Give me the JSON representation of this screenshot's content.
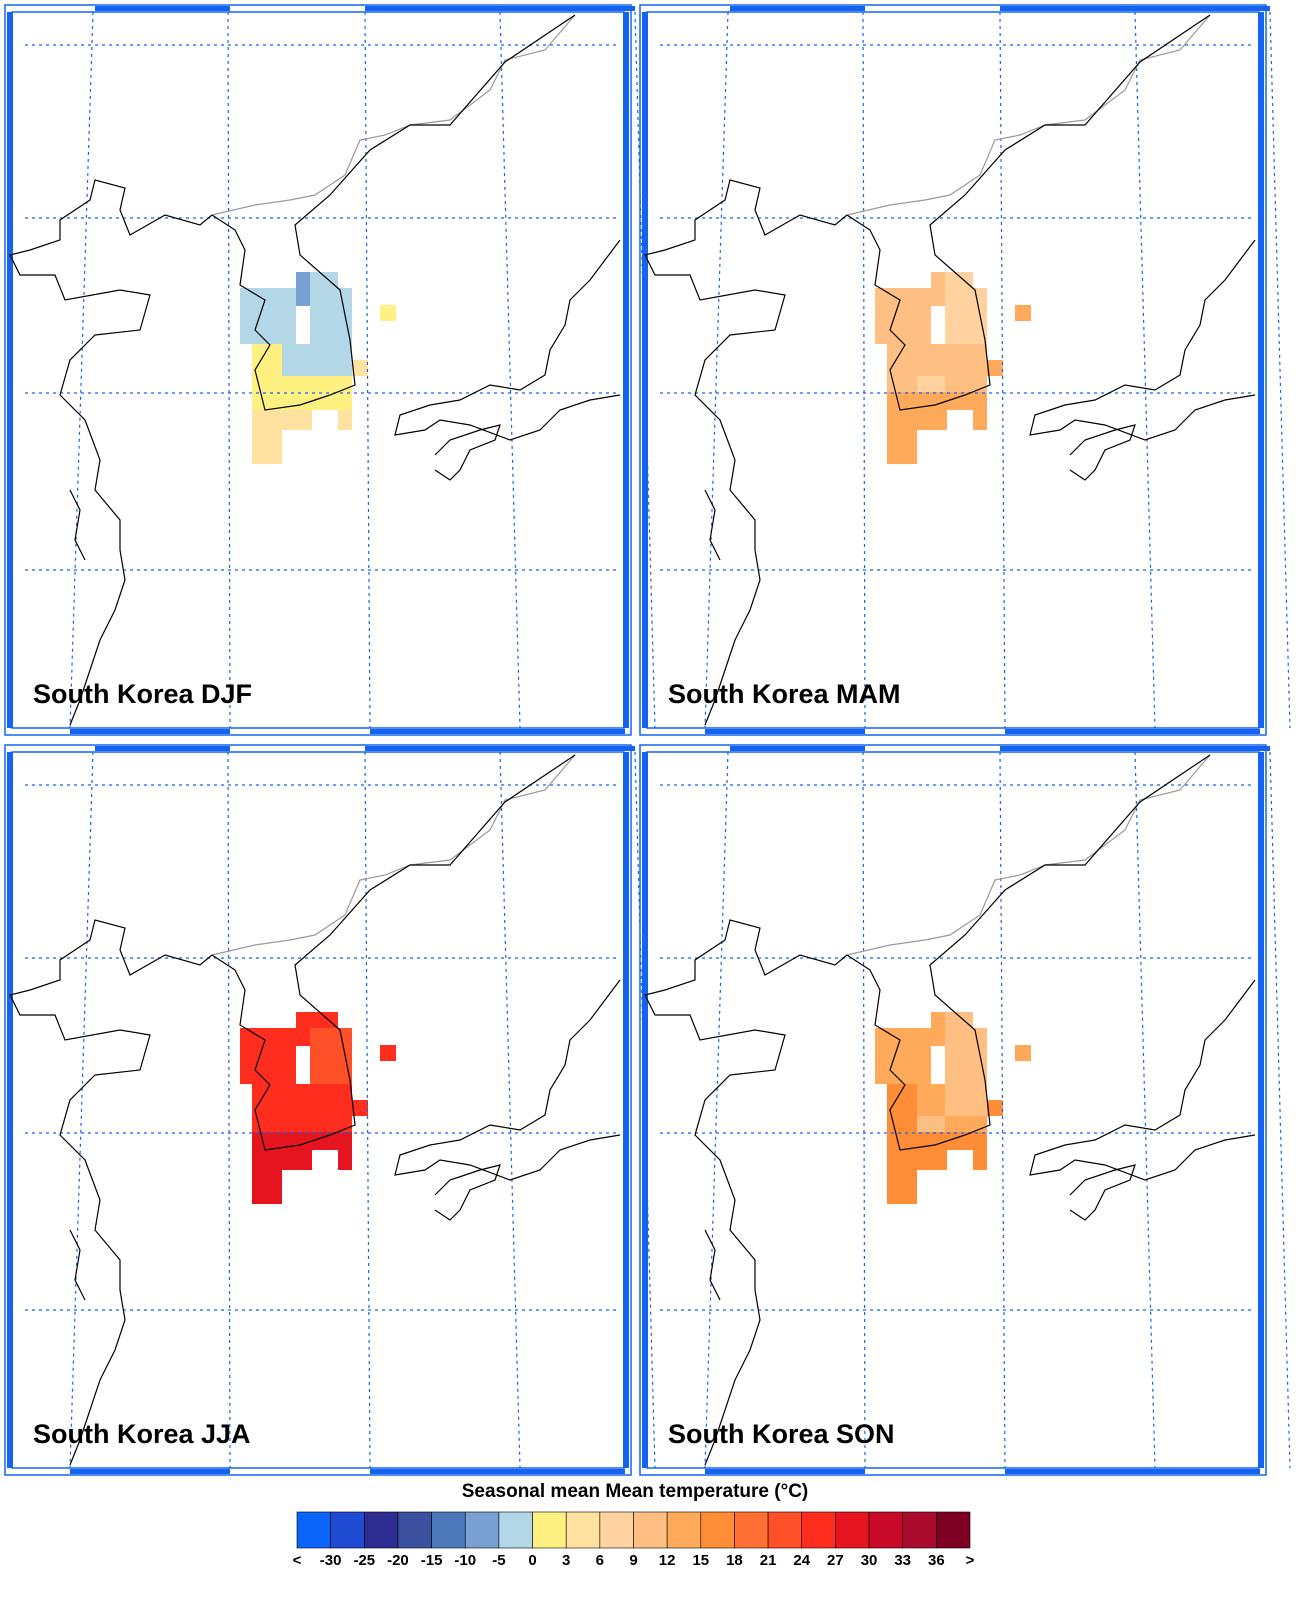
{
  "panels": [
    {
      "title": "South Korea DJF"
    },
    {
      "title": "South Korea MAM"
    },
    {
      "title": "South Korea JJA"
    },
    {
      "title": "South Korea SON"
    }
  ],
  "colorbar": {
    "title": "Seasonal mean Mean temperature (°C)",
    "labels": [
      "<",
      -30,
      -25,
      -20,
      -15,
      -10,
      -5,
      0,
      3,
      6,
      9,
      12,
      15,
      18,
      21,
      24,
      27,
      30,
      33,
      36,
      ">"
    ],
    "colors": [
      "#0a64fa",
      "#1e4bd2",
      "#2d2d91",
      "#3c50a0",
      "#4a78b9",
      "#78a0d2",
      "#b4d7e8",
      "#fff082",
      "#ffe1a0",
      "#ffd2a0",
      "#ffbe82",
      "#ffaa5a",
      "#ff8c37",
      "#ff6e32",
      "#ff5028",
      "#ff2d1e",
      "#e6141e",
      "#c80a28",
      "#aa0a2d",
      "#7d0023"
    ]
  }
}
